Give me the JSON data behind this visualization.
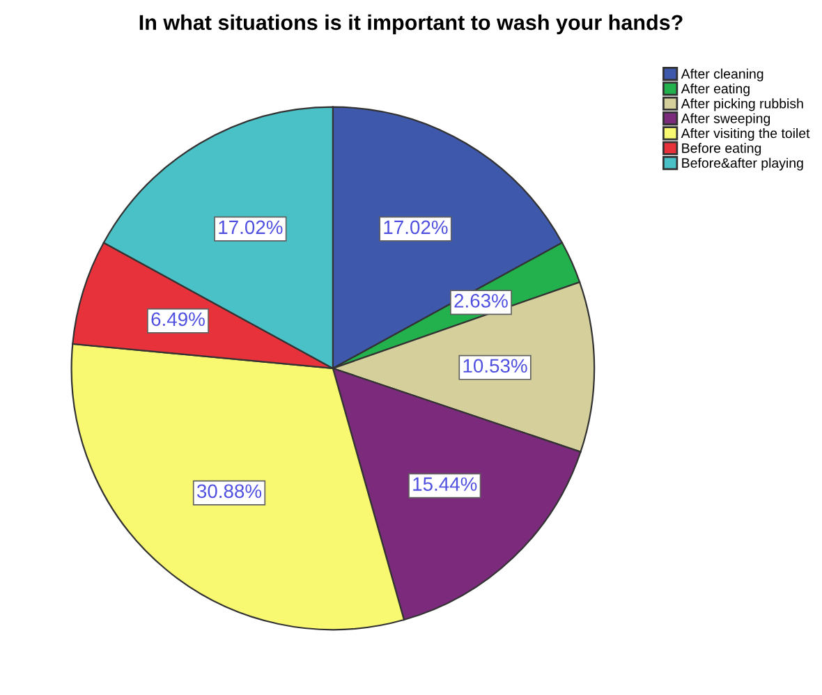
{
  "chart_data": {
    "type": "pie",
    "title": "In what situations is it important to wash your hands?",
    "categories": [
      "After cleaning",
      "After eating",
      "After picking rubbish",
      "After sweeping",
      "After visiting the toilet",
      "Before eating",
      "Before&after playing"
    ],
    "values": [
      17.02,
      2.63,
      10.53,
      15.44,
      30.88,
      6.49,
      17.02
    ],
    "colors": [
      "#3e58ac",
      "#22b14c",
      "#d4cf9b",
      "#7b2a7c",
      "#f9f871",
      "#e8323b",
      "#4ac1c6"
    ],
    "value_labels": [
      "17.02%",
      "2.63%",
      "10.53%",
      "15.44%",
      "30.88%",
      "6.49%",
      "17.02%"
    ],
    "legend": "top right"
  }
}
